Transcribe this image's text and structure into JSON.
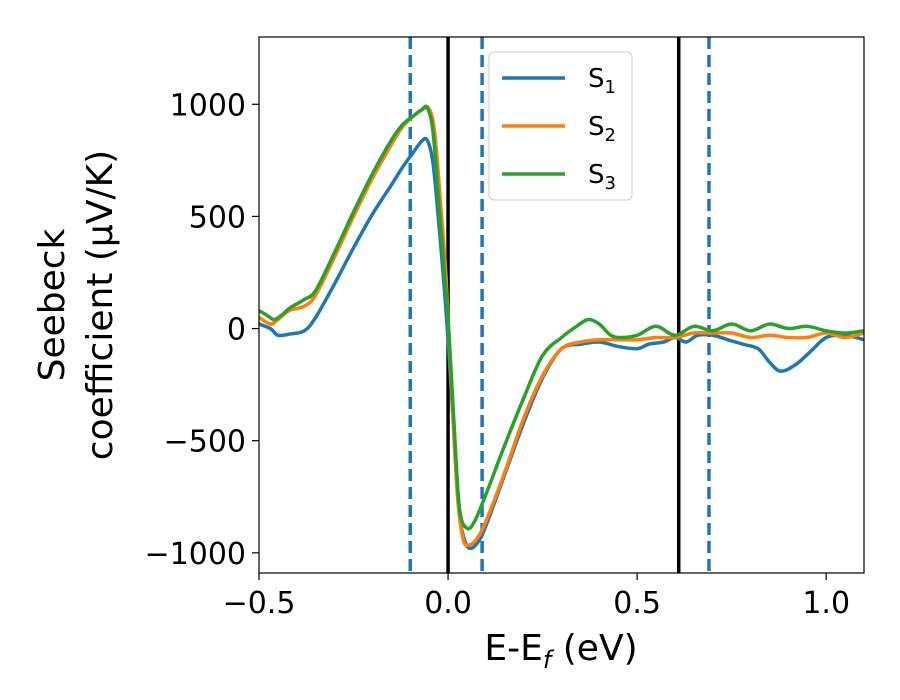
{
  "chart_data": {
    "type": "line",
    "xlabel_main": "E-E",
    "xlabel_sub": "f",
    "xlabel_unit": " (eV)",
    "ylabel_line1": "Seebeck",
    "ylabel_line2": "coefficient  (μV/K)",
    "xlim": [
      -0.5,
      1.1
    ],
    "ylim": [
      -1090,
      1300
    ],
    "x_ticks": [
      {
        "value": -0.5,
        "label": "−0.5"
      },
      {
        "value": 0.0,
        "label": "0.0"
      },
      {
        "value": 0.5,
        "label": "0.5"
      },
      {
        "value": 1.0,
        "label": "1.0"
      }
    ],
    "y_ticks": [
      {
        "value": -1000,
        "label": "−1000"
      },
      {
        "value": -500,
        "label": "−500"
      },
      {
        "value": 0,
        "label": "0"
      },
      {
        "value": 500,
        "label": "500"
      },
      {
        "value": 1000,
        "label": "1000"
      }
    ],
    "grid": false,
    "legend_position": "top-center",
    "vlines_solid": [
      0.0,
      0.61
    ],
    "vlines_dashed": [
      -0.1,
      0.09,
      0.69
    ],
    "solid_color": "#000000",
    "dashed_color": "#1f77b4",
    "series": [
      {
        "name": "S",
        "sub": "1",
        "color": "#1f77b4",
        "x": [
          -0.5,
          -0.47,
          -0.45,
          -0.42,
          -0.38,
          -0.35,
          -0.3,
          -0.25,
          -0.2,
          -0.15,
          -0.12,
          -0.09,
          -0.07,
          -0.055,
          -0.04,
          -0.025,
          -0.01,
          0.0,
          0.015,
          0.03,
          0.045,
          0.06,
          0.08,
          0.1,
          0.15,
          0.2,
          0.25,
          0.3,
          0.35,
          0.4,
          0.45,
          0.5,
          0.53,
          0.57,
          0.6,
          0.63,
          0.66,
          0.7,
          0.74,
          0.78,
          0.82,
          0.85,
          0.88,
          0.92,
          0.96,
          1.0,
          1.05,
          1.1
        ],
        "y": [
          20,
          0,
          -30,
          -25,
          -10,
          50,
          200,
          360,
          510,
          640,
          720,
          790,
          835,
          840,
          740,
          480,
          180,
          -50,
          -450,
          -820,
          -950,
          -980,
          -950,
          -880,
          -650,
          -420,
          -220,
          -90,
          -70,
          -60,
          -80,
          -90,
          -70,
          -60,
          -40,
          -60,
          -30,
          -30,
          -50,
          -70,
          -90,
          -150,
          -190,
          -160,
          -100,
          -40,
          -30,
          -50
        ]
      },
      {
        "name": "S",
        "sub": "2",
        "color": "#ff7f0e",
        "x": [
          -0.5,
          -0.47,
          -0.45,
          -0.42,
          -0.38,
          -0.35,
          -0.3,
          -0.25,
          -0.2,
          -0.15,
          -0.12,
          -0.09,
          -0.07,
          -0.05,
          -0.035,
          -0.02,
          -0.005,
          0.01,
          0.025,
          0.04,
          0.055,
          0.075,
          0.1,
          0.15,
          0.2,
          0.25,
          0.3,
          0.35,
          0.4,
          0.45,
          0.5,
          0.55,
          0.6,
          0.65,
          0.7,
          0.75,
          0.8,
          0.85,
          0.9,
          0.95,
          1.0,
          1.05,
          1.1
        ],
        "y": [
          50,
          20,
          40,
          80,
          100,
          150,
          320,
          500,
          670,
          820,
          900,
          950,
          975,
          980,
          870,
          560,
          220,
          -300,
          -750,
          -940,
          -965,
          -940,
          -860,
          -640,
          -400,
          -210,
          -90,
          -60,
          -50,
          -50,
          -50,
          -40,
          -40,
          -20,
          -20,
          -20,
          -40,
          -30,
          -40,
          -40,
          -20,
          -40,
          -20
        ]
      },
      {
        "name": "S",
        "sub": "3",
        "color": "#2ca02c",
        "x": [
          -0.5,
          -0.48,
          -0.46,
          -0.44,
          -0.42,
          -0.4,
          -0.38,
          -0.35,
          -0.3,
          -0.25,
          -0.2,
          -0.15,
          -0.12,
          -0.09,
          -0.07,
          -0.055,
          -0.04,
          -0.025,
          -0.01,
          0.0,
          0.015,
          0.03,
          0.05,
          0.07,
          0.1,
          0.15,
          0.2,
          0.25,
          0.3,
          0.34,
          0.37,
          0.4,
          0.43,
          0.46,
          0.5,
          0.55,
          0.6,
          0.65,
          0.7,
          0.75,
          0.8,
          0.85,
          0.9,
          0.95,
          1.0,
          1.05,
          1.1
        ],
        "y": [
          80,
          60,
          40,
          60,
          90,
          110,
          130,
          170,
          340,
          520,
          690,
          840,
          910,
          950,
          975,
          985,
          880,
          570,
          250,
          50,
          -400,
          -800,
          -890,
          -860,
          -740,
          -520,
          -310,
          -120,
          -40,
          10,
          40,
          20,
          -30,
          -40,
          -30,
          10,
          -30,
          10,
          -10,
          20,
          -10,
          20,
          0,
          10,
          -10,
          -20,
          -10
        ]
      }
    ]
  }
}
